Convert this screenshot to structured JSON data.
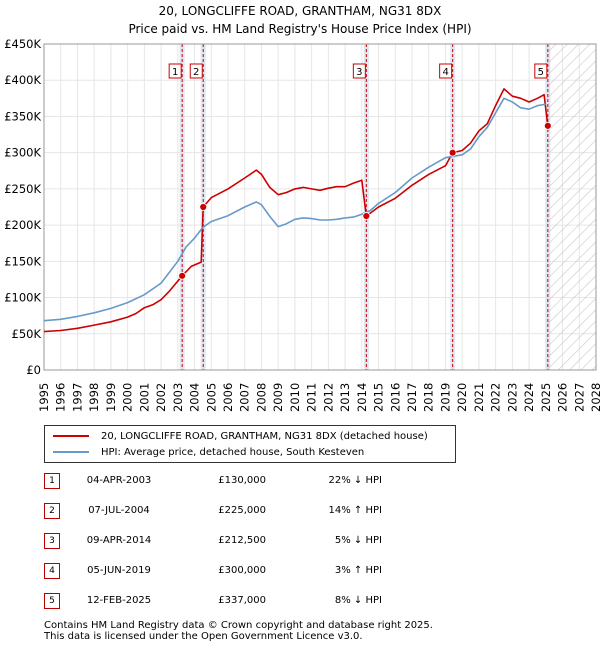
{
  "header": {
    "title_line1": "20, LONGCLIFFE ROAD, GRANTHAM, NG31 8DX",
    "title_line2": "Price paid vs. HM Land Registry's House Price Index (HPI)"
  },
  "colors": {
    "property": "#cc0000",
    "hpi": "#6699cc",
    "shade": "#dde6f2",
    "future_hatch": "#c8c8c8"
  },
  "chart_data": {
    "type": "line",
    "xlim": [
      1995,
      2028
    ],
    "ylim": [
      0,
      450000
    ],
    "y_ticks": [
      {
        "value": 0,
        "label": "£0"
      },
      {
        "value": 50000,
        "label": "£50K"
      },
      {
        "value": 100000,
        "label": "£100K"
      },
      {
        "value": 150000,
        "label": "£150K"
      },
      {
        "value": 200000,
        "label": "£200K"
      },
      {
        "value": 250000,
        "label": "£250K"
      },
      {
        "value": 300000,
        "label": "£300K"
      },
      {
        "value": 350000,
        "label": "£350K"
      },
      {
        "value": 400000,
        "label": "£400K"
      },
      {
        "value": 450000,
        "label": "£450K"
      }
    ],
    "x_ticks": [
      "1995",
      "1996",
      "1997",
      "1998",
      "1999",
      "2000",
      "2001",
      "2002",
      "2003",
      "2004",
      "2005",
      "2006",
      "2007",
      "2008",
      "2009",
      "2010",
      "2011",
      "2012",
      "2013",
      "2014",
      "2015",
      "2016",
      "2017",
      "2018",
      "2019",
      "2020",
      "2021",
      "2022",
      "2023",
      "2024",
      "2025",
      "2026",
      "2027",
      "2028"
    ],
    "forecast_start": 2025.12,
    "series": [
      {
        "name": "20, LONGCLIFFE ROAD, GRANTHAM, NG31 8DX (detached house)",
        "key": "property",
        "points": [
          [
            1995.0,
            53000
          ],
          [
            1996.0,
            54500
          ],
          [
            1997.0,
            57500
          ],
          [
            1998.0,
            62000
          ],
          [
            1999.0,
            66500
          ],
          [
            2000.0,
            73000
          ],
          [
            2000.5,
            78000
          ],
          [
            2001.0,
            86000
          ],
          [
            2001.5,
            90000
          ],
          [
            2002.0,
            97000
          ],
          [
            2002.5,
            109000
          ],
          [
            2003.26,
            130000
          ],
          [
            2003.8,
            143000
          ],
          [
            2004.4,
            149000
          ],
          [
            2004.52,
            225000
          ],
          [
            2005.0,
            238000
          ],
          [
            2006.0,
            250000
          ],
          [
            2007.0,
            265000
          ],
          [
            2007.7,
            276000
          ],
          [
            2008.0,
            270000
          ],
          [
            2008.5,
            252000
          ],
          [
            2009.0,
            242000
          ],
          [
            2009.5,
            245000
          ],
          [
            2010.0,
            250000
          ],
          [
            2010.5,
            252000
          ],
          [
            2011.0,
            250000
          ],
          [
            2011.5,
            248000
          ],
          [
            2012.0,
            251000
          ],
          [
            2012.5,
            253000
          ],
          [
            2013.0,
            253000
          ],
          [
            2013.5,
            258000
          ],
          [
            2014.0,
            262000
          ],
          [
            2014.27,
            212500
          ],
          [
            2015.0,
            225000
          ],
          [
            2016.0,
            237000
          ],
          [
            2017.0,
            255000
          ],
          [
            2018.0,
            270000
          ],
          [
            2019.0,
            282000
          ],
          [
            2019.43,
            300000
          ],
          [
            2020.0,
            303000
          ],
          [
            2020.5,
            313000
          ],
          [
            2021.0,
            330000
          ],
          [
            2021.5,
            340000
          ],
          [
            2022.0,
            365000
          ],
          [
            2022.5,
            388000
          ],
          [
            2023.0,
            378000
          ],
          [
            2023.5,
            375000
          ],
          [
            2024.0,
            370000
          ],
          [
            2024.5,
            375000
          ],
          [
            2024.9,
            380000
          ],
          [
            2025.12,
            337000
          ]
        ]
      },
      {
        "name": "HPI: Average price, detached house, South Kesteven",
        "key": "hpi",
        "points": [
          [
            1995.0,
            68000
          ],
          [
            1996.0,
            70000
          ],
          [
            1997.0,
            74000
          ],
          [
            1998.0,
            79000
          ],
          [
            1999.0,
            85000
          ],
          [
            2000.0,
            93000
          ],
          [
            2001.0,
            104000
          ],
          [
            2002.0,
            120000
          ],
          [
            2003.0,
            150000
          ],
          [
            2003.5,
            170000
          ],
          [
            2004.0,
            182000
          ],
          [
            2004.5,
            197000
          ],
          [
            2005.0,
            205000
          ],
          [
            2006.0,
            213000
          ],
          [
            2007.0,
            225000
          ],
          [
            2007.7,
            232000
          ],
          [
            2008.0,
            228000
          ],
          [
            2008.5,
            212000
          ],
          [
            2009.0,
            198000
          ],
          [
            2009.5,
            202000
          ],
          [
            2010.0,
            208000
          ],
          [
            2010.5,
            210000
          ],
          [
            2011.0,
            209000
          ],
          [
            2011.5,
            207000
          ],
          [
            2012.0,
            207000
          ],
          [
            2012.5,
            208000
          ],
          [
            2013.0,
            210000
          ],
          [
            2013.5,
            211000
          ],
          [
            2014.0,
            215000
          ],
          [
            2014.5,
            220000
          ],
          [
            2015.0,
            230000
          ],
          [
            2016.0,
            245000
          ],
          [
            2017.0,
            265000
          ],
          [
            2018.0,
            280000
          ],
          [
            2019.0,
            293000
          ],
          [
            2020.0,
            297000
          ],
          [
            2020.5,
            305000
          ],
          [
            2021.0,
            322000
          ],
          [
            2021.5,
            335000
          ],
          [
            2022.0,
            355000
          ],
          [
            2022.5,
            375000
          ],
          [
            2023.0,
            370000
          ],
          [
            2023.5,
            362000
          ],
          [
            2024.0,
            360000
          ],
          [
            2024.5,
            365000
          ],
          [
            2025.0,
            367000
          ]
        ]
      }
    ],
    "transactions": [
      {
        "num": "1",
        "x": 2003.26,
        "price": 130000
      },
      {
        "num": "2",
        "x": 2004.52,
        "price": 225000
      },
      {
        "num": "3",
        "x": 2014.27,
        "price": 212500
      },
      {
        "num": "4",
        "x": 2019.43,
        "price": 300000
      },
      {
        "num": "5",
        "x": 2025.12,
        "price": 337000
      }
    ]
  },
  "legend": {
    "property_label": "20, LONGCLIFFE ROAD, GRANTHAM, NG31 8DX (detached house)",
    "hpi_label": "HPI: Average price, detached house, South Kesteven"
  },
  "table": {
    "rows": [
      {
        "num": "1",
        "date": "04-APR-2003",
        "price": "£130,000",
        "hpi": "22% ↓ HPI"
      },
      {
        "num": "2",
        "date": "07-JUL-2004",
        "price": "£225,000",
        "hpi": "14% ↑ HPI"
      },
      {
        "num": "3",
        "date": "09-APR-2014",
        "price": "£212,500",
        "hpi": "5% ↓ HPI"
      },
      {
        "num": "4",
        "date": "05-JUN-2019",
        "price": "£300,000",
        "hpi": "3% ↑ HPI"
      },
      {
        "num": "5",
        "date": "12-FEB-2025",
        "price": "£337,000",
        "hpi": "8% ↓ HPI"
      }
    ]
  },
  "footer": {
    "line1": "Contains HM Land Registry data © Crown copyright and database right 2025.",
    "line2": "This data is licensed under the Open Government Licence v3.0."
  }
}
